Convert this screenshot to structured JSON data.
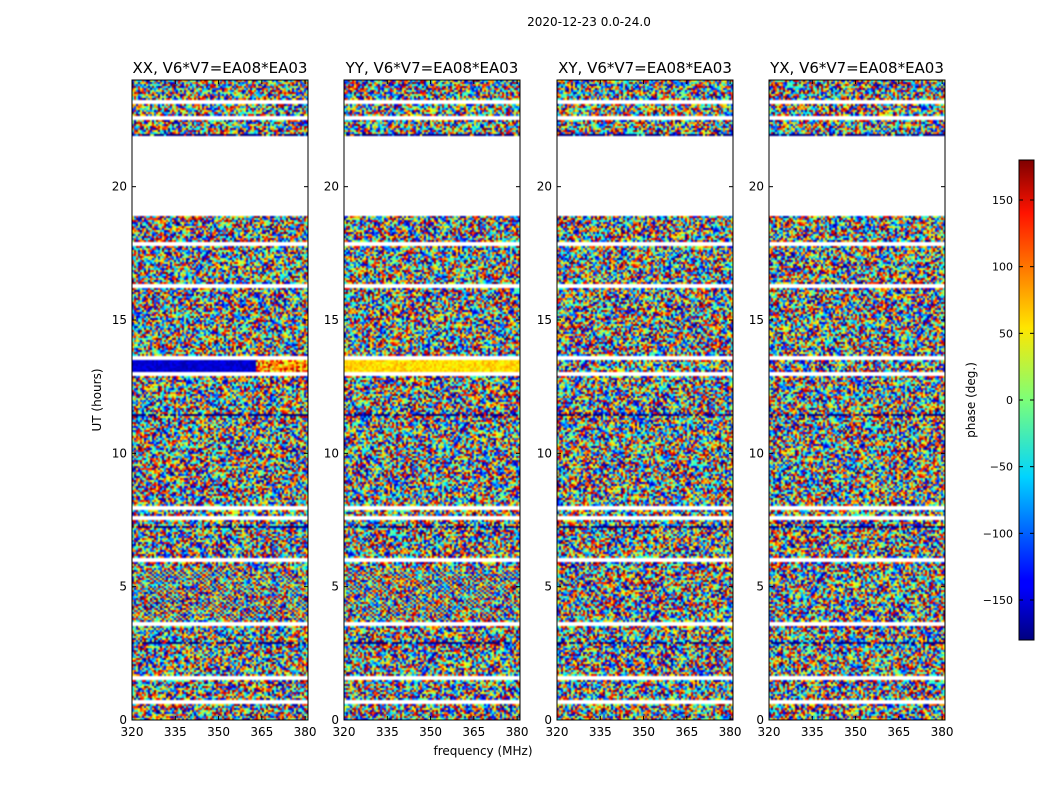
{
  "chart_data": {
    "type": "heatmap",
    "suptitle": "2020-12-23 0.0-24.0",
    "xlabel": "frequency (MHz)",
    "ylabel": "UT (hours)",
    "xlim": [
      320,
      381
    ],
    "ylim": [
      0,
      24
    ],
    "xticks": [
      320,
      335,
      350,
      365,
      380
    ],
    "yticks": [
      0,
      5,
      10,
      15,
      20
    ],
    "panels": [
      {
        "title": "XX, V6*V7=EA08*EA03",
        "pol": "XX"
      },
      {
        "title": "YY, V6*V7=EA08*EA03",
        "pol": "YY"
      },
      {
        "title": "XY, V6*V7=EA08*EA03",
        "pol": "XY"
      },
      {
        "title": "YX, V6*V7=EA08*EA03",
        "pol": "YX"
      }
    ],
    "data_gap_hours": [
      21.9,
      18.9
    ],
    "colorbar": {
      "label": "phase (deg.)",
      "colormap": "jet",
      "vmin": -180,
      "vmax": 180,
      "ticks": [
        150,
        100,
        50,
        0,
        -50,
        -100,
        -150
      ],
      "tick_labels": [
        "150",
        "100",
        "50",
        "0",
        "−50",
        "−100",
        "−150"
      ]
    }
  }
}
